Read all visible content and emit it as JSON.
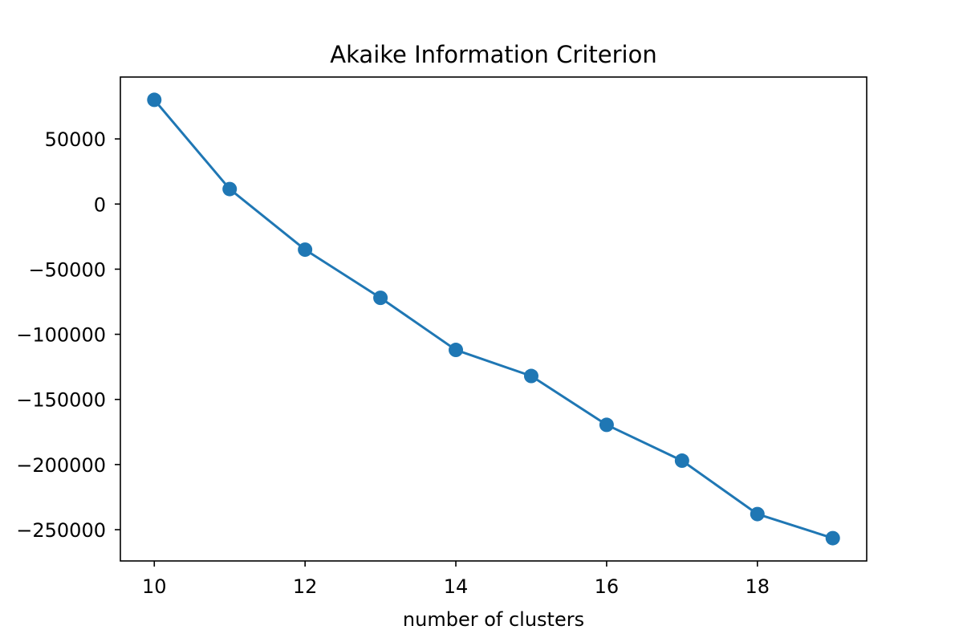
{
  "chart_data": {
    "type": "line",
    "title": "Akaike Information Criterion",
    "xlabel": "number of clusters",
    "ylabel": "",
    "x": [
      10,
      11,
      12,
      13,
      14,
      15,
      16,
      17,
      18,
      19
    ],
    "series": [
      {
        "values": [
          80000,
          11500,
          -35000,
          -72000,
          -112000,
          -132000,
          -169500,
          -197000,
          -238000,
          -256500
        ]
      }
    ],
    "xticks": [
      10,
      12,
      14,
      16,
      18
    ],
    "xtick_labels": [
      "10",
      "12",
      "14",
      "16",
      "18"
    ],
    "yticks": [
      50000,
      0,
      -50000,
      -100000,
      -150000,
      -200000,
      -250000
    ],
    "ytick_labels": [
      "50000",
      "0",
      "−50000",
      "−100000",
      "−150000",
      "−200000",
      "−250000"
    ],
    "xlim": [
      9.55,
      19.45
    ],
    "ylim": [
      -274000,
      97500
    ],
    "grid": false,
    "legend": false,
    "marker": "circle",
    "line_color": "#1f77b4"
  }
}
